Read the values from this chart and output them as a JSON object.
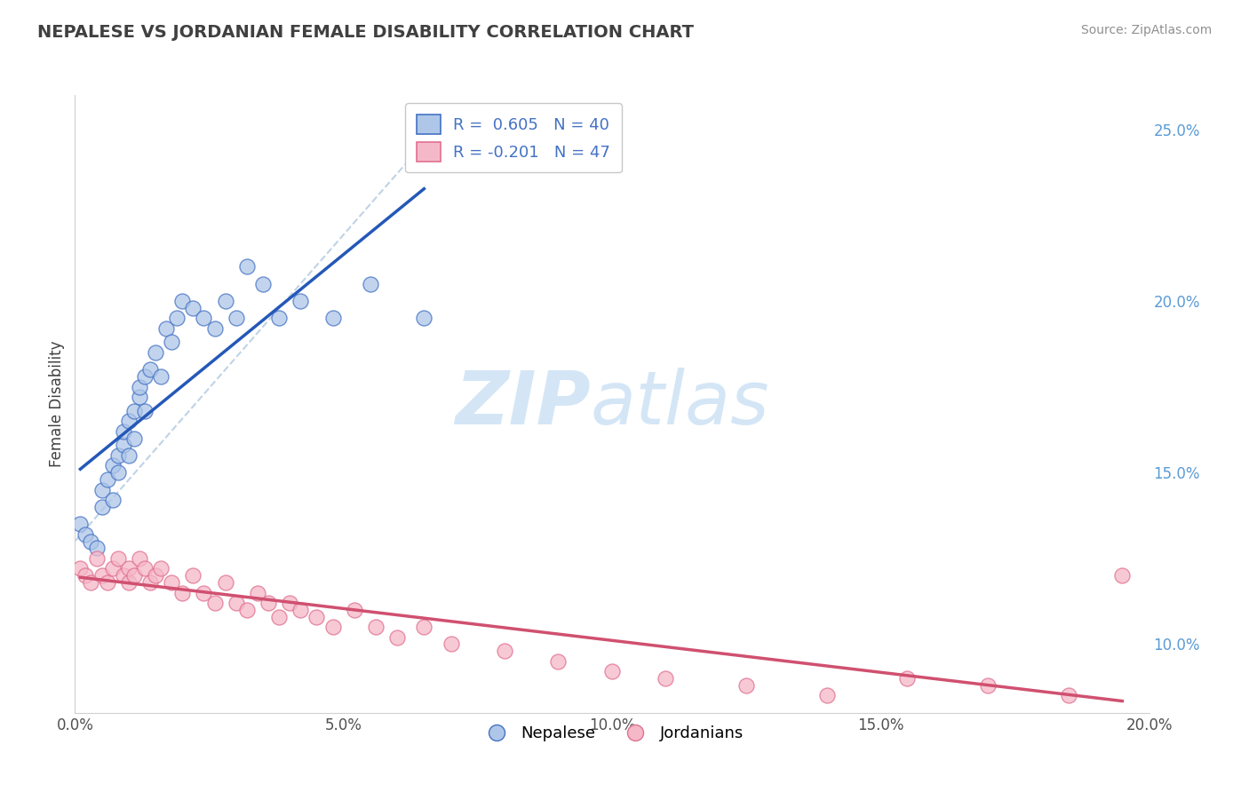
{
  "title": "NEPALESE VS JORDANIAN FEMALE DISABILITY CORRELATION CHART",
  "source_text": "Source: ZipAtlas.com",
  "ylabel": "Female Disability",
  "xlim": [
    0.0,
    0.2
  ],
  "ylim": [
    0.08,
    0.26
  ],
  "ytick_vals": [
    0.1,
    0.125,
    0.15,
    0.175,
    0.2,
    0.225,
    0.25
  ],
  "ytick_labels": [
    "10.0%",
    "",
    "15.0%",
    "",
    "20.0%",
    "",
    "25.0%"
  ],
  "xticks": [
    0.0,
    0.05,
    0.1,
    0.15,
    0.2
  ],
  "xtick_labels": [
    "0.0%",
    "5.0%",
    "10.0%",
    "15.0%",
    "20.0%"
  ],
  "legend_r1": "R =  0.605",
  "legend_n1": "N = 40",
  "legend_r2": "R = -0.201",
  "legend_n2": "N = 47",
  "blue_fill": "#aec6e8",
  "pink_fill": "#f5b8c8",
  "blue_edge": "#4472c4",
  "pink_edge": "#e07090",
  "blue_line": "#2458b8",
  "pink_line": "#d05070",
  "dash_color": "#b0c8e0",
  "title_color": "#404040",
  "source_color": "#909090",
  "grid_color": "#d8e4f0",
  "bg_color": "#ffffff",
  "watermark": "ZIPatlas",
  "watermark_color": "#d0e4f5",
  "nepalese_x": [
    0.001,
    0.002,
    0.003,
    0.004,
    0.005,
    0.005,
    0.006,
    0.007,
    0.007,
    0.008,
    0.008,
    0.009,
    0.009,
    0.01,
    0.01,
    0.011,
    0.011,
    0.012,
    0.012,
    0.013,
    0.013,
    0.014,
    0.015,
    0.016,
    0.017,
    0.018,
    0.019,
    0.02,
    0.022,
    0.024,
    0.026,
    0.028,
    0.03,
    0.032,
    0.035,
    0.038,
    0.042,
    0.048,
    0.055,
    0.065
  ],
  "nepalese_y": [
    0.135,
    0.132,
    0.13,
    0.128,
    0.14,
    0.145,
    0.148,
    0.142,
    0.152,
    0.155,
    0.15,
    0.158,
    0.162,
    0.155,
    0.165,
    0.16,
    0.168,
    0.172,
    0.175,
    0.168,
    0.178,
    0.18,
    0.185,
    0.178,
    0.192,
    0.188,
    0.195,
    0.2,
    0.198,
    0.195,
    0.192,
    0.2,
    0.195,
    0.21,
    0.205,
    0.195,
    0.2,
    0.195,
    0.205,
    0.195
  ],
  "jordanian_x": [
    0.001,
    0.002,
    0.003,
    0.004,
    0.005,
    0.006,
    0.007,
    0.008,
    0.009,
    0.01,
    0.01,
    0.011,
    0.012,
    0.013,
    0.014,
    0.015,
    0.016,
    0.018,
    0.02,
    0.022,
    0.024,
    0.026,
    0.028,
    0.03,
    0.032,
    0.034,
    0.036,
    0.038,
    0.04,
    0.042,
    0.045,
    0.048,
    0.052,
    0.056,
    0.06,
    0.065,
    0.07,
    0.08,
    0.09,
    0.1,
    0.11,
    0.125,
    0.14,
    0.155,
    0.17,
    0.185,
    0.195
  ],
  "jordanian_y": [
    0.122,
    0.12,
    0.118,
    0.125,
    0.12,
    0.118,
    0.122,
    0.125,
    0.12,
    0.118,
    0.122,
    0.12,
    0.125,
    0.122,
    0.118,
    0.12,
    0.122,
    0.118,
    0.115,
    0.12,
    0.115,
    0.112,
    0.118,
    0.112,
    0.11,
    0.115,
    0.112,
    0.108,
    0.112,
    0.11,
    0.108,
    0.105,
    0.11,
    0.105,
    0.102,
    0.105,
    0.1,
    0.098,
    0.095,
    0.092,
    0.09,
    0.088,
    0.085,
    0.09,
    0.088,
    0.085,
    0.12
  ]
}
